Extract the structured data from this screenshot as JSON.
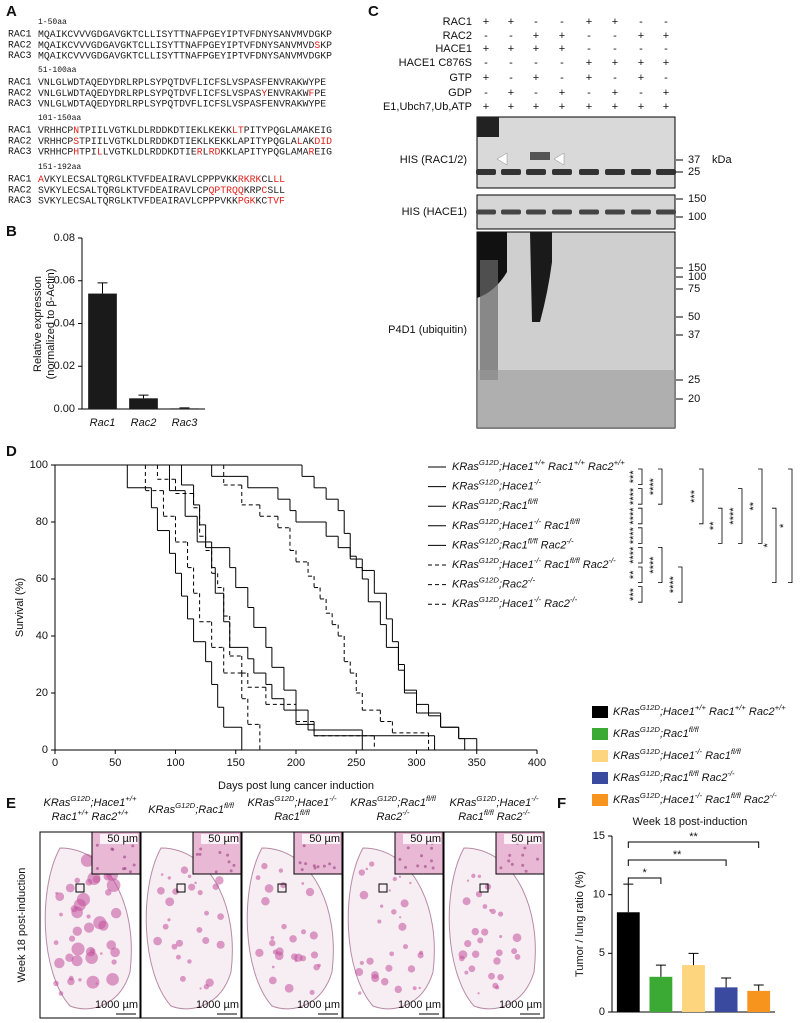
{
  "panel_labels": [
    "A",
    "B",
    "C",
    "D",
    "E",
    "F"
  ],
  "sequence_alignment": {
    "blocks": [
      {
        "range": "1-50aa",
        "rows": [
          {
            "name": "RAC1",
            "segments": [
              {
                "text": "MQAIKCVVVGDGAVGKTCLLISYTTNAFPGEYIPTVFDNYSANVMVDGKP",
                "red": false
              }
            ]
          },
          {
            "name": "RAC2",
            "segments": [
              {
                "text": "MQAIKCVVVGDGAVGKTCLLISYTTNAFPGEYIPTVFDNYSANVMVD",
                "red": false
              },
              {
                "text": "S",
                "red": true
              },
              {
                "text": "KP",
                "red": false
              }
            ]
          },
          {
            "name": "RAC3",
            "segments": [
              {
                "text": "MQAIKCVVVGDGAVGKTCLLISYTTNAFPGEYIPTVFDNYSANVMVDGKP",
                "red": false
              }
            ]
          }
        ]
      },
      {
        "range": "51-100aa",
        "rows": [
          {
            "name": "RAC1",
            "segments": [
              {
                "text": "VNLGLWDTAQEDYDRLRPLSYPQTDVFLICFSLVSPASFENVRAKWYPE",
                "red": false
              }
            ]
          },
          {
            "name": "RAC2",
            "segments": [
              {
                "text": "VNLGLWDTAQEDYDRLRPLSYPQTDVFLICFSLVSPAS",
                "red": false
              },
              {
                "text": "Y",
                "red": true
              },
              {
                "text": "ENVRAKW",
                "red": false
              },
              {
                "text": "F",
                "red": true
              },
              {
                "text": "PE",
                "red": false
              }
            ]
          },
          {
            "name": "RAC3",
            "segments": [
              {
                "text": "VNLGLWDTAQEDYDRLRPLSYPQTDVFLICFSLVSPASFENVRAKWYPE",
                "red": false
              }
            ]
          }
        ]
      },
      {
        "range": "101-150aa",
        "rows": [
          {
            "name": "RAC1",
            "segments": [
              {
                "text": "VRHHCP",
                "red": false
              },
              {
                "text": "N",
                "red": true
              },
              {
                "text": "TPIILVGTKLDLRDDKDTIEKLKEKK",
                "red": false
              },
              {
                "text": "LT",
                "red": true
              },
              {
                "text": "PITYPQGLAMAKEIG",
                "red": false
              }
            ]
          },
          {
            "name": "RAC2",
            "segments": [
              {
                "text": "VRHHCP",
                "red": false
              },
              {
                "text": "S",
                "red": true
              },
              {
                "text": "TPIILVGTKLDLRDDKDTIEKLKEKKLAPITYPQGLA",
                "red": false
              },
              {
                "text": "L",
                "red": true
              },
              {
                "text": "AK",
                "red": false
              },
              {
                "text": "DID",
                "red": true
              }
            ]
          },
          {
            "name": "RAC3",
            "segments": [
              {
                "text": "VRHHCP",
                "red": false
              },
              {
                "text": "H",
                "red": true
              },
              {
                "text": "TPI",
                "red": false
              },
              {
                "text": "L",
                "red": true
              },
              {
                "text": "LVGTKLDLRDDKDTIE",
                "red": false
              },
              {
                "text": "R",
                "red": true
              },
              {
                "text": "L",
                "red": false
              },
              {
                "text": "RD",
                "red": true
              },
              {
                "text": "KKLAPITYPQGLAMA",
                "red": false
              },
              {
                "text": "R",
                "red": true
              },
              {
                "text": "EIG",
                "red": false
              }
            ]
          }
        ]
      },
      {
        "range": "151-192aa",
        "rows": [
          {
            "name": "RAC1",
            "segments": [
              {
                "text": "A",
                "red": true
              },
              {
                "text": "VKYLECSALTQRGLKTVFDEAIRAVLCPPPVKK",
                "red": false
              },
              {
                "text": "RKRK",
                "red": true
              },
              {
                "text": "CL",
                "red": false
              },
              {
                "text": "LL",
                "red": true
              }
            ]
          },
          {
            "name": "RAC2",
            "segments": [
              {
                "text": "SVKYLECSALTQRGLKTVFDEAIRAVLCP",
                "red": false
              },
              {
                "text": "QPTRQQ",
                "red": true
              },
              {
                "text": "KRP",
                "red": false
              },
              {
                "text": "C",
                "red": true
              },
              {
                "text": "SLL",
                "red": false
              }
            ]
          },
          {
            "name": "RAC3",
            "segments": [
              {
                "text": "SVKYLECSALTQRGLKTVFDEAIRAVLCPPPVKK",
                "red": false
              },
              {
                "text": "PGK",
                "red": true
              },
              {
                "text": "KC",
                "red": false
              },
              {
                "text": "TVF",
                "red": true
              }
            ]
          }
        ]
      }
    ]
  },
  "blot": {
    "unit": "kDa",
    "conditions": [
      {
        "label": "RAC1",
        "signs": [
          "+",
          "+",
          "-",
          "-",
          "+",
          "+",
          "-",
          "-"
        ]
      },
      {
        "label": "RAC2",
        "signs": [
          "-",
          "-",
          "+",
          "+",
          "-",
          "-",
          "+",
          "+"
        ]
      },
      {
        "label": "HACE1",
        "signs": [
          "+",
          "+",
          "+",
          "+",
          "-",
          "-",
          "-",
          "-"
        ]
      },
      {
        "label": "HACE1 C876S",
        "signs": [
          "-",
          "-",
          "-",
          "-",
          "+",
          "+",
          "+",
          "+"
        ]
      },
      {
        "label": "GTP",
        "signs": [
          "+",
          "-",
          "+",
          "-",
          "+",
          "-",
          "+",
          "-"
        ]
      },
      {
        "label": "GDP",
        "signs": [
          "-",
          "+",
          "-",
          "+",
          "-",
          "+",
          "-",
          "+"
        ]
      },
      {
        "label": "E1,Ubch7,Ub,ATP",
        "signs": [
          "+",
          "+",
          "+",
          "+",
          "+",
          "+",
          "+",
          "+"
        ]
      }
    ],
    "panels": [
      {
        "label": "HIS (RAC1/2)",
        "markers": [
          37,
          25
        ]
      },
      {
        "label": "HIS (HACE1)",
        "markers": [
          150,
          100
        ]
      },
      {
        "label": "P4D1 (ubiquitin)",
        "markers": [
          150,
          100,
          75,
          50,
          37,
          25,
          20
        ]
      }
    ]
  },
  "histology": {
    "row_label": "Week 18 post-induction",
    "columns": [
      {
        "title": [
          "KRasG12D;Hace1+/+",
          "Rac1+/+ Rac2+/+"
        ]
      },
      {
        "title": [
          "KRasG12D;Rac1fl/fl"
        ]
      },
      {
        "title": [
          "KRasG12D;Hace1-/-",
          "Rac1fl/fl"
        ]
      },
      {
        "title": [
          "KRasG12D;Rac1fl/fl",
          "Rac2-/-"
        ]
      },
      {
        "title": [
          "KRasG12D;Hace1-/-",
          "Rac1fl/fl Rac2-/-"
        ]
      }
    ],
    "inset_scale": "50 µm",
    "scale": "1000 µm"
  },
  "chart_data": [
    {
      "type": "bar",
      "categories": [
        "Rac1",
        "Rac2",
        "Rac3"
      ],
      "values": [
        0.054,
        0.005,
        0.0003
      ],
      "errors": [
        0.005,
        0.0015,
        0.0002
      ],
      "color": "#1a1a1a",
      "ylim": [
        0,
        0.08
      ],
      "yticks": [
        {
          "value": 0,
          "label": "0.00"
        },
        0.02,
        0.04,
        0.06,
        0.08
      ],
      "y_label": [
        "Relative expression",
        "(normalized to β-Actin)"
      ]
    },
    {
      "type": "line",
      "step": true,
      "x_label": "Days post lung cancer induction",
      "y_label": "Survival (%)",
      "xlim": [
        0,
        400
      ],
      "xticks": [
        0,
        50,
        100,
        150,
        200,
        250,
        300,
        350,
        400
      ],
      "ylim": [
        0,
        100
      ],
      "yticks": [
        0,
        20,
        40,
        60,
        80,
        100
      ],
      "series": [
        {
          "name": "KRasG12D;Hace1+/+ Rac1+/+ Rac2+/+",
          "color": "#000000",
          "dashed": false,
          "x": [
            0,
            95,
            108,
            118,
            130,
            133,
            140,
            145,
            160,
            165,
            175,
            180,
            190,
            200,
            215,
            315
          ],
          "values": [
            100,
            91,
            82,
            73,
            64,
            55,
            45,
            36,
            32,
            27,
            23,
            18,
            14,
            9,
            5,
            0
          ]
        },
        {
          "name": "KRasG12D;Hace1-/-",
          "color": "#e31e24",
          "dashed": false,
          "x": [
            0,
            60,
            80,
            85,
            95,
            100,
            105,
            110,
            115,
            125,
            130,
            135,
            140,
            155
          ],
          "values": [
            100,
            92,
            85,
            77,
            69,
            62,
            54,
            46,
            38,
            31,
            23,
            15,
            8,
            0
          ]
        },
        {
          "name": "KRasG12D;Rac1fl/fl",
          "color": "#3aaa35",
          "dashed": false,
          "x": [
            0,
            205,
            215,
            225,
            235,
            240,
            245,
            250,
            255,
            260,
            270,
            275,
            285,
            290,
            300,
            310,
            320,
            335,
            350
          ],
          "values": [
            100,
            96,
            92,
            88,
            84,
            76,
            68,
            64,
            60,
            52,
            44,
            36,
            28,
            20,
            16,
            12,
            8,
            4,
            0
          ]
        },
        {
          "name": "KRasG12D;Hace1-/- Rac1fl/fl",
          "color": "#f9d36a",
          "dashed": false,
          "x": [
            0,
            105,
            115,
            120,
            125,
            145,
            150,
            160,
            165,
            175,
            180,
            190,
            200,
            210,
            255
          ],
          "values": [
            100,
            93,
            86,
            79,
            71,
            64,
            57,
            50,
            43,
            36,
            29,
            21,
            14,
            7,
            0
          ]
        },
        {
          "name": "KRasG12D;Rac1fl/fl Rac2-/-",
          "color": "#2e3192",
          "dashed": false,
          "x": [
            0,
            130,
            160,
            185,
            195,
            200,
            225,
            235,
            245,
            255,
            265,
            275,
            280,
            285,
            290,
            300,
            320,
            335,
            340
          ],
          "values": [
            100,
            96,
            92,
            88,
            84,
            80,
            75,
            71,
            67,
            63,
            55,
            46,
            38,
            30,
            21,
            13,
            8,
            4,
            0
          ]
        },
        {
          "name": "KRasG12D;Hace1-/- Rac1fl/fl Rac2-/-",
          "color": "#f7941d",
          "dashed": true,
          "x": [
            0,
            140,
            155,
            170,
            185,
            195,
            200,
            210,
            215,
            220,
            225,
            230,
            235,
            240,
            245,
            250,
            255,
            270,
            280,
            310
          ],
          "values": [
            100,
            93,
            86,
            82,
            78,
            70,
            66,
            61,
            57,
            53,
            48,
            44,
            40,
            31,
            27,
            20,
            14,
            10,
            6,
            0
          ]
        },
        {
          "name": "KRasG12D;Rac2-/-",
          "color": "#29abe2",
          "dashed": true,
          "x": [
            0,
            85,
            100,
            115,
            120,
            125,
            130,
            135,
            140,
            145,
            155,
            160,
            175,
            200,
            215,
            265
          ],
          "values": [
            100,
            95,
            90,
            85,
            75,
            70,
            62,
            57,
            47,
            33,
            27,
            22,
            16,
            10,
            5,
            0
          ]
        },
        {
          "name": "KRasG12D;Hace1-/- Rac2-/-",
          "color": "#808285",
          "dashed": true,
          "x": [
            0,
            75,
            90,
            100,
            110,
            115,
            120,
            130,
            140,
            155,
            160,
            170
          ],
          "values": [
            100,
            91,
            82,
            73,
            64,
            55,
            45,
            36,
            27,
            18,
            9,
            0
          ]
        }
      ],
      "significance": [
        "***",
        "****",
        "****",
        "****",
        "****",
        "**",
        "***",
        "****",
        "****",
        "****",
        "***",
        "**",
        "****",
        "**",
        "*",
        "*"
      ]
    },
    {
      "type": "bar",
      "title": "Week 18 post-induction",
      "y_label": "Tumor / lung ratio (%)",
      "ylim": [
        0,
        15
      ],
      "yticks": [
        0,
        5,
        10,
        15
      ],
      "series": [
        {
          "name": "KRasG12D;Hace1+/+ Rac1+/+ Rac2+/+",
          "color": "#000000",
          "values": [
            8.5
          ],
          "errors": [
            2.4
          ]
        },
        {
          "name": "KRasG12D;Rac1fl/fl",
          "color": "#3aaa35",
          "values": [
            3.0
          ],
          "errors": [
            1.0
          ]
        },
        {
          "name": "KRasG12D;Hace1-/- Rac1fl/fl",
          "color": "#fdd57e",
          "values": [
            4.0
          ],
          "errors": [
            1.0
          ]
        },
        {
          "name": "KRasG12D;Rac1fl/fl Rac2-/-",
          "color": "#3a4a9f",
          "values": [
            2.1
          ],
          "errors": [
            0.8
          ]
        },
        {
          "name": "KRasG12D;Hace1-/- Rac1fl/fl Rac2-/-",
          "color": "#f7941d",
          "values": [
            1.8
          ],
          "errors": [
            0.5
          ]
        }
      ],
      "significance": [
        "*",
        "**",
        "**"
      ]
    }
  ]
}
